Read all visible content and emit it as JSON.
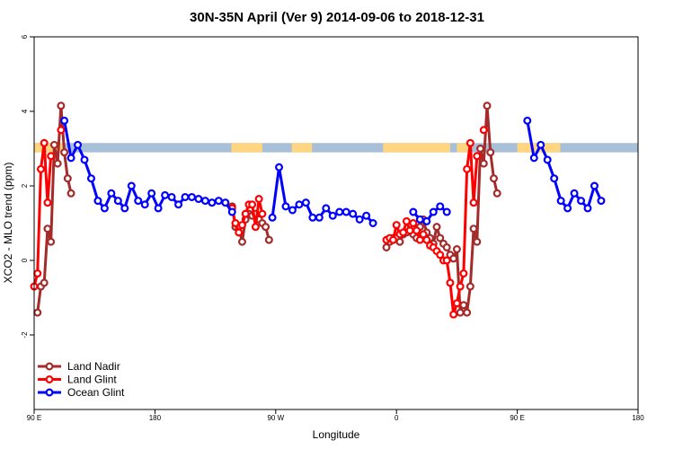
{
  "chart_data": {
    "type": "line",
    "title": "30N-35N April (Ver 9)   2014-09-06 to 2018-12-31",
    "xlabel": "Longitude",
    "ylabel": "XCO2 - MLO trend (ppm)",
    "xlim": [
      -90,
      360
    ],
    "ylim": [
      -4,
      6
    ],
    "x_ticks": [
      {
        "value": -90,
        "label": "90 E"
      },
      {
        "value": 0,
        "label": "180"
      },
      {
        "value": 90,
        "label": "90 W"
      },
      {
        "value": 180,
        "label": "0"
      },
      {
        "value": 270,
        "label": "90 E"
      },
      {
        "value": 360,
        "label": "180"
      }
    ],
    "y_ticks": [
      {
        "value": -2,
        "label": "-2"
      },
      {
        "value": 0,
        "label": "0"
      },
      {
        "value": 2,
        "label": "2"
      },
      {
        "value": 4,
        "label": "4"
      },
      {
        "value": 6,
        "label": "6"
      }
    ],
    "surface_band": {
      "y_range": [
        2.9,
        3.15
      ],
      "land_color": "#FFD580",
      "ocean_color": "#A8BFD8",
      "land_x_ranges": [
        [
          -90,
          -67
        ],
        [
          57,
          80
        ],
        [
          102,
          117
        ],
        [
          170,
          220
        ],
        [
          225,
          235
        ],
        [
          270,
          302
        ]
      ]
    },
    "legend_position": "bottom-left",
    "series": [
      {
        "name": "Land Nadir",
        "color": "#A52A2A",
        "x": [
          -87.5,
          -85,
          -82.5,
          -80,
          -77.5,
          -75,
          -72.5,
          -70,
          -67.5,
          -65,
          -62.5,
          -60,
          -57.5,
          -55,
          -52.5,
          null,
          57.5,
          60,
          62.5,
          65,
          67.5,
          70,
          72.5,
          75,
          77.5,
          80,
          82.5,
          85,
          87.5,
          90,
          92.5,
          95,
          97.5,
          100,
          102.5,
          105,
          107.5,
          null,
          172.5,
          175,
          177.5,
          180,
          182.5,
          185,
          187.5,
          190,
          192.5,
          195,
          197.5,
          200,
          202.5,
          205,
          207.5,
          210,
          212.5,
          215,
          217.5,
          220,
          222.5,
          225,
          227.5,
          230,
          232.5,
          235,
          237.5,
          240,
          242.5,
          245,
          247.5,
          250,
          252.5,
          255,
          257.5,
          260,
          262.5,
          265,
          267.5,
          270,
          272.5,
          275,
          277.5,
          280,
          282.5,
          285,
          287.5,
          290,
          292.5,
          295,
          297.5,
          300,
          302.5,
          305,
          307.5
        ],
        "y": [
          -1.4,
          -0.7,
          -0.6,
          0.85,
          0.5,
          3.1,
          2.6,
          4.15,
          2.9,
          2.2,
          1.8,
          null,
          null,
          null,
          null,
          null,
          1.45,
          0.9,
          0.9,
          0.5,
          1.1,
          1.25,
          1.2,
          1.25,
          1.1,
          1.0,
          0.9,
          0.55,
          null,
          null,
          null,
          null,
          null,
          null,
          null,
          null,
          null,
          null,
          0.35,
          0.5,
          0.6,
          0.6,
          0.5,
          0.7,
          0.75,
          0.8,
          0.7,
          0.6,
          0.9,
          1.1,
          0.75,
          0.6,
          0.45,
          0.9,
          0.6,
          0.45,
          0.35,
          0.15,
          0.05,
          0.3,
          -1.4,
          -1.2,
          -1.4,
          -0.7,
          0.85,
          0.5,
          3.0,
          2.6,
          4.15,
          2.9,
          2.2,
          1.8,
          null,
          null,
          null,
          null,
          null,
          null,
          null,
          null,
          null,
          null,
          null,
          null,
          null,
          null,
          null,
          null,
          null,
          null,
          null,
          null,
          null
        ]
      },
      {
        "name": "Land Glint",
        "color": "#FF0000",
        "x": [
          -90,
          -87.5,
          -85,
          -82.5,
          -80,
          -77.5,
          -75,
          -72.5,
          -70,
          -67.5,
          -65,
          -62.5,
          -60,
          null,
          57.5,
          60,
          62.5,
          65,
          67.5,
          70,
          72.5,
          75,
          77.5,
          80,
          82.5,
          85,
          null,
          172.5,
          175,
          177.5,
          180,
          182.5,
          185,
          187.5,
          190,
          192.5,
          195,
          197.5,
          200,
          202.5,
          205,
          207.5,
          210,
          212.5,
          215,
          217.5,
          220,
          222.5,
          225,
          227.5,
          230,
          232.5,
          235,
          237.5,
          240,
          242.5,
          245,
          247.5,
          250,
          252.5,
          255,
          257.5,
          260,
          262.5
        ],
        "y": [
          -0.7,
          -0.35,
          2.45,
          3.15,
          1.55,
          2.8,
          null,
          null,
          3.5,
          null,
          null,
          null,
          null,
          null,
          1.4,
          1.0,
          0.75,
          0.95,
          1.25,
          1.5,
          1.5,
          0.9,
          1.65,
          1.25,
          null,
          null,
          null,
          0.55,
          0.6,
          0.55,
          0.95,
          0.7,
          0.75,
          1.05,
          0.8,
          1.0,
          0.8,
          0.55,
          0.7,
          0.55,
          0.4,
          0.35,
          0.25,
          0.15,
          0.0,
          0.0,
          -0.6,
          -1.45,
          -1.15,
          -0.7,
          -0.35,
          2.45,
          3.15,
          1.55,
          2.8,
          null,
          3.5,
          null,
          null,
          null,
          null,
          null,
          null,
          null
        ]
      },
      {
        "name": "Ocean Glint",
        "color": "#0000FF",
        "x": [
          -67.5,
          -62.5,
          -57.5,
          -52.5,
          -47.5,
          -42.5,
          -37.5,
          -32.5,
          -27.5,
          -22.5,
          -17.5,
          -12.5,
          -7.5,
          -2.5,
          2.5,
          7.5,
          12.5,
          17.5,
          22.5,
          27.5,
          32.5,
          37.5,
          42.5,
          47.5,
          52.5,
          57.5,
          62.5,
          null,
          87.5,
          92.5,
          97.5,
          102.5,
          107.5,
          112.5,
          117.5,
          122.5,
          127.5,
          132.5,
          137.5,
          142.5,
          147.5,
          152.5,
          157.5,
          162.5,
          167.5,
          172.5,
          null,
          192.5,
          197.5,
          202.5,
          207.5,
          212.5,
          217.5,
          222.5,
          null,
          277.5,
          282.5,
          287.5,
          292.5,
          297.5,
          302.5,
          307.5,
          312.5,
          317.5,
          322.5,
          327.5,
          332.5,
          337.5,
          342.5,
          347.5,
          352.5,
          357.5
        ],
        "y": [
          3.75,
          2.75,
          3.1,
          2.7,
          2.2,
          1.6,
          1.4,
          1.8,
          1.6,
          1.4,
          2.0,
          1.6,
          1.5,
          1.8,
          1.4,
          1.75,
          1.7,
          1.5,
          1.7,
          1.7,
          1.65,
          1.6,
          1.55,
          1.6,
          1.55,
          1.3,
          null,
          null,
          1.15,
          2.5,
          1.45,
          1.35,
          1.5,
          1.55,
          1.15,
          1.15,
          1.4,
          1.2,
          1.3,
          1.3,
          1.25,
          1.1,
          1.2,
          1.0,
          null,
          null,
          null,
          1.3,
          1.1,
          1.05,
          1.3,
          1.45,
          1.3,
          null,
          null,
          3.75,
          2.75,
          3.1,
          2.7,
          2.2,
          1.6,
          1.4,
          1.8,
          1.6,
          1.4,
          2.0,
          1.6,
          null,
          null,
          null,
          null,
          null
        ]
      }
    ]
  }
}
